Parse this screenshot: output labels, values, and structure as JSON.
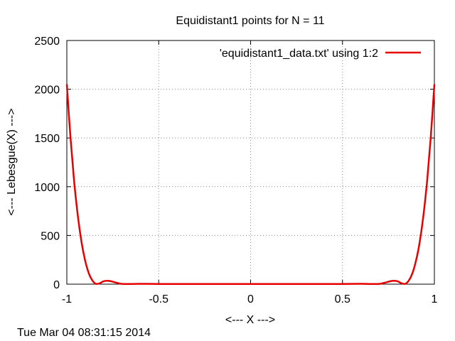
{
  "timestamp": "Tue Mar 04 08:31:15 2014",
  "chart_data": {
    "type": "line",
    "title": "Equidistant1 points for N = 11",
    "xlabel": "<--- X --->",
    "ylabel": "<--- Lebesgue(X) --->",
    "xlim": [
      -1,
      1
    ],
    "ylim": [
      0,
      2500
    ],
    "xticks": [
      -1,
      -0.5,
      0,
      0.5,
      1
    ],
    "xtick_labels": [
      "-1",
      "-0.5",
      "0",
      "0.5",
      "1"
    ],
    "yticks": [
      0,
      500,
      1000,
      1500,
      2000,
      2500
    ],
    "ytick_labels": [
      "0",
      "500",
      "1000",
      "1500",
      "2000",
      "2500"
    ],
    "grid": true,
    "legend_position": "top-right",
    "series": [
      {
        "name": "'equidistant1_data.txt' using 1:2",
        "color": "#e60000",
        "x": [
          -1.0,
          -0.98,
          -0.96,
          -0.94,
          -0.92,
          -0.9,
          -0.88,
          -0.86,
          -0.84,
          -0.82,
          -0.8,
          -0.78,
          -0.76,
          -0.74,
          -0.72,
          -0.7,
          -0.65,
          -0.6,
          -0.5,
          -0.4,
          -0.3,
          -0.2,
          -0.1,
          0.0,
          0.1,
          0.2,
          0.3,
          0.4,
          0.5,
          0.6,
          0.65,
          0.7,
          0.72,
          0.74,
          0.76,
          0.78,
          0.8,
          0.82,
          0.84,
          0.86,
          0.88,
          0.9,
          0.92,
          0.94,
          0.96,
          0.98,
          1.0
        ],
        "y": [
          2050,
          1500,
          1050,
          700,
          430,
          240,
          110,
          35,
          2,
          10,
          30,
          35,
          30,
          20,
          10,
          3,
          2,
          4,
          2,
          2,
          2,
          2,
          2,
          2,
          2,
          2,
          2,
          2,
          2,
          4,
          2,
          3,
          10,
          20,
          30,
          35,
          30,
          10,
          2,
          35,
          110,
          240,
          430,
          700,
          1050,
          1500,
          2050
        ]
      }
    ]
  }
}
